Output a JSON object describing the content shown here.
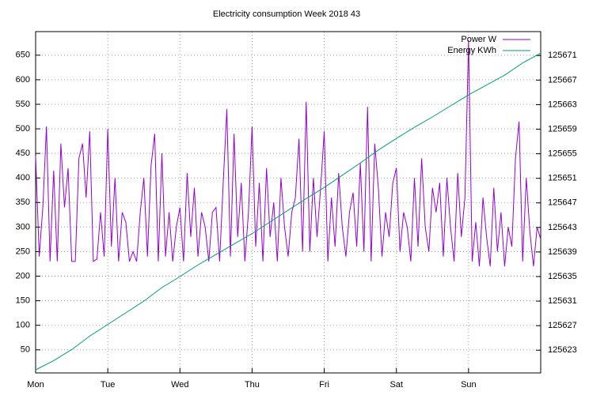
{
  "chart_data": {
    "type": "line",
    "title": "Electricity consumption Week 2018 43",
    "xlim": [
      0,
      7
    ],
    "xticks": [
      {
        "value": 0,
        "label": "Mon"
      },
      {
        "value": 1,
        "label": "Tue"
      },
      {
        "value": 2,
        "label": "Wed"
      },
      {
        "value": 3,
        "label": "Thu"
      },
      {
        "value": 4,
        "label": "Fri"
      },
      {
        "value": 5,
        "label": "Sat"
      },
      {
        "value": 6,
        "label": "Sun"
      }
    ],
    "ylim": [
      3,
      698
    ],
    "yticks": [
      50,
      100,
      150,
      200,
      250,
      300,
      350,
      400,
      450,
      500,
      550,
      600,
      650
    ],
    "y2lim": [
      125619.3,
      125674.9
    ],
    "y2ticks": [
      125623,
      125627,
      125631,
      125635,
      125639,
      125643,
      125647,
      125651,
      125655,
      125659,
      125663,
      125667,
      125671
    ],
    "grid": true,
    "legend": "top-right",
    "series": [
      {
        "name": "Power W",
        "color": "#9400d3",
        "x": [
          0,
          0.05,
          0.1,
          0.15,
          0.2,
          0.25,
          0.3,
          0.35,
          0.4,
          0.45,
          0.5,
          0.55,
          0.6,
          0.65,
          0.7,
          0.75,
          0.8,
          0.85,
          0.9,
          0.95,
          1,
          1.05,
          1.1,
          1.15,
          1.2,
          1.25,
          1.3,
          1.35,
          1.4,
          1.45,
          1.5,
          1.55,
          1.6,
          1.65,
          1.7,
          1.75,
          1.8,
          1.85,
          1.9,
          1.95,
          2,
          2.05,
          2.1,
          2.15,
          2.2,
          2.25,
          2.3,
          2.35,
          2.4,
          2.45,
          2.5,
          2.55,
          2.6,
          2.65,
          2.7,
          2.75,
          2.8,
          2.85,
          2.9,
          2.95,
          3,
          3.05,
          3.1,
          3.15,
          3.2,
          3.25,
          3.3,
          3.35,
          3.4,
          3.45,
          3.5,
          3.55,
          3.6,
          3.65,
          3.7,
          3.75,
          3.8,
          3.85,
          3.9,
          3.95,
          4,
          4.05,
          4.1,
          4.15,
          4.2,
          4.25,
          4.3,
          4.35,
          4.4,
          4.45,
          4.5,
          4.55,
          4.6,
          4.65,
          4.7,
          4.75,
          4.8,
          4.85,
          4.9,
          4.95,
          5,
          5.05,
          5.1,
          5.15,
          5.2,
          5.25,
          5.3,
          5.35,
          5.4,
          5.45,
          5.5,
          5.55,
          5.6,
          5.65,
          5.7,
          5.75,
          5.8,
          5.85,
          5.9,
          5.95,
          6,
          6.05,
          6.1,
          6.15,
          6.2,
          6.25,
          6.3,
          6.35,
          6.4,
          6.45,
          6.5,
          6.55,
          6.6,
          6.65,
          6.7,
          6.75,
          6.8,
          6.85,
          6.9,
          6.95,
          7
        ],
        "values": [
          445,
          240,
          340,
          505,
          230,
          415,
          230,
          470,
          340,
          420,
          230,
          230,
          440,
          470,
          360,
          495,
          230,
          235,
          330,
          240,
          500,
          260,
          400,
          230,
          330,
          310,
          230,
          250,
          230,
          330,
          400,
          240,
          425,
          490,
          230,
          450,
          240,
          330,
          230,
          300,
          340,
          230,
          410,
          280,
          380,
          240,
          330,
          300,
          230,
          330,
          340,
          230,
          390,
          540,
          240,
          490,
          280,
          390,
          230,
          330,
          505,
          260,
          390,
          230,
          420,
          280,
          350,
          230,
          400,
          300,
          240,
          330,
          360,
          480,
          250,
          555,
          250,
          400,
          280,
          380,
          495,
          230,
          360,
          260,
          410,
          300,
          240,
          330,
          370,
          260,
          430,
          250,
          545,
          230,
          470,
          380,
          240,
          330,
          280,
          390,
          420,
          250,
          330,
          300,
          230,
          400,
          260,
          440,
          300,
          250,
          380,
          330,
          390,
          240,
          400,
          300,
          230,
          410,
          280,
          360,
          680,
          230,
          310,
          220,
          360,
          280,
          220,
          380,
          250,
          330,
          220,
          300,
          260,
          440,
          515,
          230,
          400,
          290,
          220,
          300,
          275
        ]
      },
      {
        "name": "Energy KWh",
        "color": "#009e73",
        "axis": "y2",
        "x": [
          0,
          0.25,
          0.5,
          0.75,
          1,
          1.25,
          1.5,
          1.75,
          2,
          2.25,
          2.5,
          2.75,
          3,
          3.25,
          3.5,
          3.75,
          4,
          4.25,
          4.5,
          4.75,
          5,
          5.25,
          5.5,
          5.75,
          6,
          6.25,
          6.5,
          6.75,
          7
        ],
        "values": [
          125619.8,
          125621.3,
          125623.1,
          125625.3,
          125627.2,
          125629.1,
          125631.0,
          125633.2,
          125635.0,
          125636.9,
          125638.6,
          125640.3,
          125642.0,
          125643.9,
          125645.8,
          125647.7,
          125649.5,
          125651.5,
          125653.5,
          125655.6,
          125657.5,
          125659.3,
          125661.0,
          125662.8,
          125664.6,
          125666.2,
          125667.8,
          125669.8,
          125671.4
        ]
      }
    ]
  }
}
